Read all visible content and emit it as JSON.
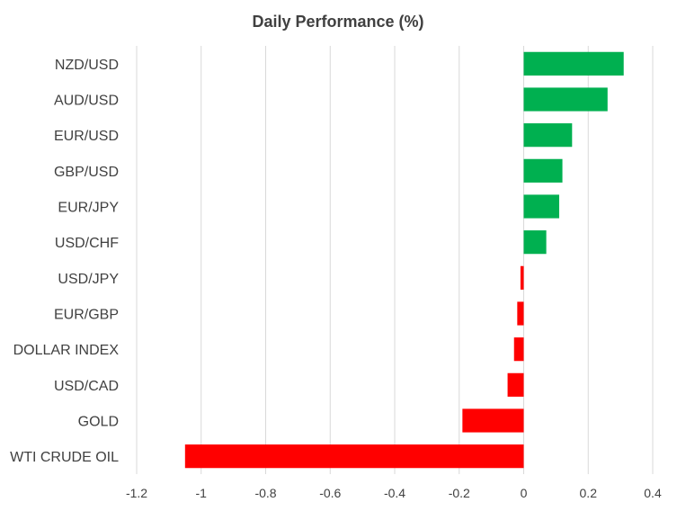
{
  "chart_data": {
    "type": "bar",
    "orientation": "horizontal",
    "title": "Daily Performance  (%)",
    "xlabel": "",
    "ylabel": "",
    "categories": [
      "NZD/USD",
      "AUD/USD",
      "EUR/USD",
      "GBP/USD",
      "EUR/JPY",
      "USD/CHF",
      "USD/JPY",
      "EUR/GBP",
      "DOLLAR INDEX",
      "USD/CAD",
      "GOLD",
      "WTI CRUDE OIL"
    ],
    "values": [
      0.31,
      0.26,
      0.15,
      0.12,
      0.11,
      0.07,
      -0.01,
      -0.02,
      -0.03,
      -0.05,
      -0.19,
      -1.05
    ],
    "xlim": [
      -1.2,
      0.4
    ],
    "ticks": [
      "-1.2",
      "-1",
      "-0.8",
      "-0.6",
      "-0.4",
      "-0.2",
      "0",
      "0.2",
      "0.4"
    ],
    "grid": "vertical",
    "legend": "none",
    "colors": {
      "positive": "#00b050",
      "negative": "#ff0000",
      "grid": "#d9d9d9",
      "text": "#404040"
    }
  }
}
